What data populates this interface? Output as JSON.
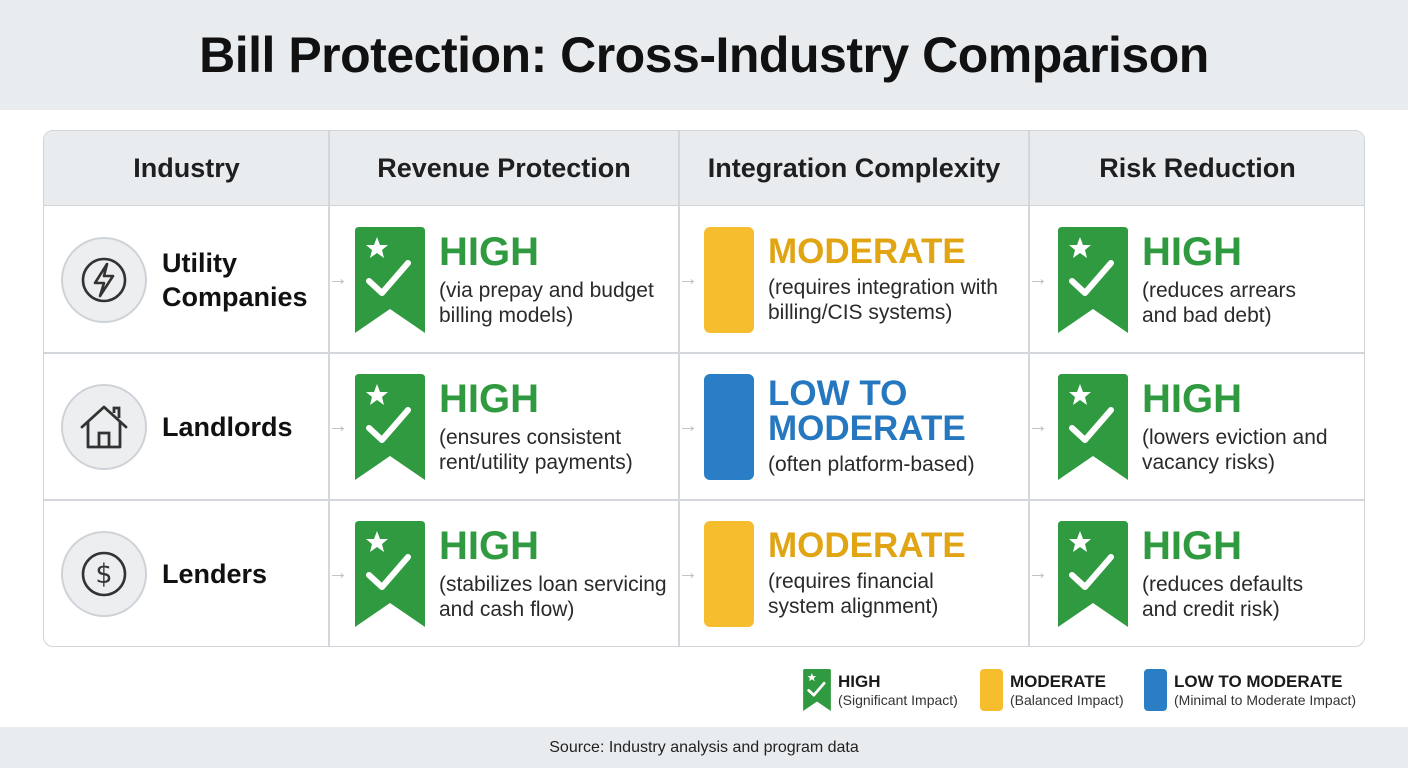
{
  "title": "Bill Protection: Cross-Industry Comparison",
  "headers": {
    "industry": "Industry",
    "revenue": "Revenue Protection",
    "integration": "Integration Complexity",
    "risk": "Risk Reduction"
  },
  "colors": {
    "high": "#2f9a3f",
    "moderate": "#f6bd2f",
    "low_to_moderate": "#2a7ec5",
    "moderate_text": "#e1a514",
    "low_to_moderate_text": "#2578c0"
  },
  "rows": [
    {
      "industry": {
        "icon": "lightning-icon",
        "name_line1": "Utility",
        "name_line2": "Companies"
      },
      "revenue": {
        "level": "HIGH",
        "desc1": "(via prepay and budget",
        "desc2": "billing models)"
      },
      "integration": {
        "level": "MODERATE",
        "desc1": "(requires integration with",
        "desc2": "billing/CIS systems)"
      },
      "risk": {
        "level": "HIGH",
        "desc1": "(reduces arrears",
        "desc2": "and bad debt)"
      }
    },
    {
      "industry": {
        "icon": "house-icon",
        "name_line1": "Landlords",
        "name_line2": ""
      },
      "revenue": {
        "level": "HIGH",
        "desc1": "(ensures consistent",
        "desc2": "rent/utility payments)"
      },
      "integration": {
        "level_line1": "LOW TO",
        "level_line2": "MODERATE",
        "desc1": "(often platform-based)"
      },
      "risk": {
        "level": "HIGH",
        "desc1": "(lowers eviction and",
        "desc2": "vacancy risks)"
      }
    },
    {
      "industry": {
        "icon": "dollar-icon",
        "name_line1": "Lenders",
        "name_line2": ""
      },
      "revenue": {
        "level": "HIGH",
        "desc1": "(stabilizes loan servicing",
        "desc2": "and cash flow)"
      },
      "integration": {
        "level": "MODERATE",
        "desc1": "(requires financial",
        "desc2": "system alignment)"
      },
      "risk": {
        "level": "HIGH",
        "desc1": "(reduces defaults",
        "desc2": "and credit risk)"
      }
    }
  ],
  "legend": [
    {
      "level": "HIGH",
      "sub": "(Significant Impact)"
    },
    {
      "level": "MODERATE",
      "sub": "(Balanced Impact)"
    },
    {
      "level": "LOW TO MODERATE",
      "sub": "(Minimal to Moderate Impact)"
    }
  ],
  "source": "Source: Industry analysis and program data"
}
